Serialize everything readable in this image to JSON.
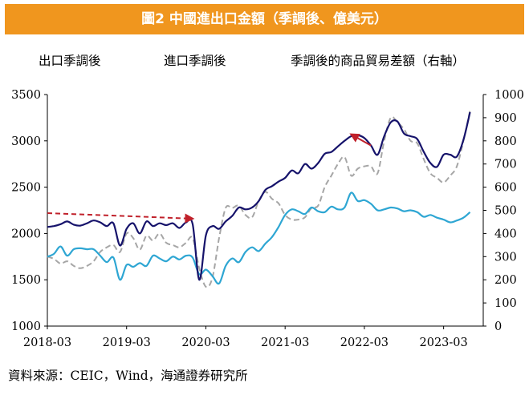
{
  "title": "圖2  中國進出口金額（季調後、億美元）",
  "legend": {
    "exports": "出口季調後",
    "imports": "進口季調後",
    "balance": "季調後的商品貿易差額（右軸）"
  },
  "source": "資料來源：CEIC，Wind，海通證券研究所",
  "colors": {
    "exports": "#16136b",
    "imports": "#2ea6d3",
    "balance": "#a6a6a6",
    "arrow": "#c0202a",
    "title_bg": "#f0961e"
  },
  "chart_data": {
    "type": "line",
    "x_ticks": [
      "2018-03",
      "2019-03",
      "2020-03",
      "2021-03",
      "2022-03",
      "2023-03"
    ],
    "left_axis": {
      "min": 1000,
      "max": 3500,
      "ticks": [
        "1000",
        "1500",
        "2000",
        "2500",
        "3000",
        "3500"
      ]
    },
    "right_axis": {
      "min": 0,
      "max": 1000,
      "ticks": [
        "0",
        "100",
        "200",
        "300",
        "400",
        "500",
        "600",
        "700",
        "800",
        "900",
        "1000"
      ]
    },
    "x_range": [
      "2018-03",
      "2023-09"
    ],
    "series": [
      {
        "name": "出口季調後",
        "axis": "left",
        "style": "solid",
        "points": [
          [
            "2018-03",
            2070
          ],
          [
            "2018-04",
            2080
          ],
          [
            "2018-05",
            2100
          ],
          [
            "2018-06",
            2130
          ],
          [
            "2018-07",
            2095
          ],
          [
            "2018-08",
            2085
          ],
          [
            "2018-09",
            2110
          ],
          [
            "2018-10",
            2140
          ],
          [
            "2018-11",
            2120
          ],
          [
            "2018-12",
            2080
          ],
          [
            "2019-01",
            2110
          ],
          [
            "2019-02",
            1870
          ],
          [
            "2019-03",
            2050
          ],
          [
            "2019-04",
            2110
          ],
          [
            "2019-05",
            2000
          ],
          [
            "2019-06",
            2130
          ],
          [
            "2019-07",
            2080
          ],
          [
            "2019-08",
            2110
          ],
          [
            "2019-09",
            2090
          ],
          [
            "2019-10",
            2110
          ],
          [
            "2019-11",
            2060
          ],
          [
            "2019-12",
            2120
          ],
          [
            "2020-01",
            2100
          ],
          [
            "2020-02",
            1500
          ],
          [
            "2020-03",
            1980
          ],
          [
            "2020-04",
            2080
          ],
          [
            "2020-05",
            2050
          ],
          [
            "2020-06",
            2130
          ],
          [
            "2020-07",
            2190
          ],
          [
            "2020-08",
            2280
          ],
          [
            "2020-09",
            2260
          ],
          [
            "2020-10",
            2280
          ],
          [
            "2020-11",
            2350
          ],
          [
            "2020-12",
            2470
          ],
          [
            "2021-01",
            2510
          ],
          [
            "2021-02",
            2560
          ],
          [
            "2021-03",
            2600
          ],
          [
            "2021-04",
            2680
          ],
          [
            "2021-05",
            2650
          ],
          [
            "2021-06",
            2750
          ],
          [
            "2021-07",
            2700
          ],
          [
            "2021-08",
            2760
          ],
          [
            "2021-09",
            2860
          ],
          [
            "2021-10",
            2880
          ],
          [
            "2021-11",
            2940
          ],
          [
            "2021-12",
            3000
          ],
          [
            "2022-01",
            3050
          ],
          [
            "2022-02",
            3060
          ],
          [
            "2022-03",
            3030
          ],
          [
            "2022-04",
            2950
          ],
          [
            "2022-05",
            2850
          ],
          [
            "2022-06",
            3050
          ],
          [
            "2022-07",
            3200
          ],
          [
            "2022-08",
            3210
          ],
          [
            "2022-09",
            3080
          ],
          [
            "2022-10",
            3050
          ],
          [
            "2022-11",
            3020
          ],
          [
            "2022-12",
            2880
          ],
          [
            "2023-01",
            2760
          ],
          [
            "2023-02",
            2720
          ],
          [
            "2023-03",
            2850
          ],
          [
            "2023-04",
            2850
          ],
          [
            "2023-05",
            2830
          ],
          [
            "2023-06",
            3010
          ],
          [
            "2023-07",
            3310
          ]
        ]
      },
      {
        "name": "進口季調後",
        "axis": "left",
        "style": "solid",
        "points": [
          [
            "2018-03",
            1750
          ],
          [
            "2018-04",
            1780
          ],
          [
            "2018-05",
            1860
          ],
          [
            "2018-06",
            1760
          ],
          [
            "2018-07",
            1830
          ],
          [
            "2018-08",
            1840
          ],
          [
            "2018-09",
            1830
          ],
          [
            "2018-10",
            1830
          ],
          [
            "2018-11",
            1760
          ],
          [
            "2018-12",
            1690
          ],
          [
            "2019-01",
            1740
          ],
          [
            "2019-02",
            1500
          ],
          [
            "2019-03",
            1660
          ],
          [
            "2019-04",
            1640
          ],
          [
            "2019-05",
            1680
          ],
          [
            "2019-06",
            1650
          ],
          [
            "2019-07",
            1760
          ],
          [
            "2019-08",
            1730
          ],
          [
            "2019-09",
            1700
          ],
          [
            "2019-10",
            1750
          ],
          [
            "2019-11",
            1720
          ],
          [
            "2019-12",
            1760
          ],
          [
            "2020-01",
            1740
          ],
          [
            "2020-02",
            1560
          ],
          [
            "2020-03",
            1610
          ],
          [
            "2020-04",
            1540
          ],
          [
            "2020-05",
            1460
          ],
          [
            "2020-06",
            1650
          ],
          [
            "2020-07",
            1730
          ],
          [
            "2020-08",
            1690
          ],
          [
            "2020-09",
            1800
          ],
          [
            "2020-10",
            1850
          ],
          [
            "2020-11",
            1810
          ],
          [
            "2020-12",
            1890
          ],
          [
            "2021-01",
            1960
          ],
          [
            "2021-02",
            2070
          ],
          [
            "2021-03",
            2200
          ],
          [
            "2021-04",
            2260
          ],
          [
            "2021-05",
            2240
          ],
          [
            "2021-06",
            2210
          ],
          [
            "2021-07",
            2280
          ],
          [
            "2021-08",
            2240
          ],
          [
            "2021-09",
            2230
          ],
          [
            "2021-10",
            2290
          ],
          [
            "2021-11",
            2260
          ],
          [
            "2021-12",
            2280
          ],
          [
            "2022-01",
            2440
          ],
          [
            "2022-02",
            2350
          ],
          [
            "2022-03",
            2360
          ],
          [
            "2022-04",
            2320
          ],
          [
            "2022-05",
            2250
          ],
          [
            "2022-06",
            2260
          ],
          [
            "2022-07",
            2280
          ],
          [
            "2022-08",
            2270
          ],
          [
            "2022-09",
            2240
          ],
          [
            "2022-10",
            2250
          ],
          [
            "2022-11",
            2230
          ],
          [
            "2022-12",
            2180
          ],
          [
            "2023-01",
            2200
          ],
          [
            "2023-02",
            2170
          ],
          [
            "2023-03",
            2150
          ],
          [
            "2023-04",
            2120
          ],
          [
            "2023-05",
            2140
          ],
          [
            "2023-06",
            2170
          ],
          [
            "2023-07",
            2230
          ]
        ]
      },
      {
        "name": "季調後的商品貿易差額（右軸）",
        "axis": "right",
        "style": "dashed",
        "points": [
          [
            "2018-03",
            300
          ],
          [
            "2018-04",
            290
          ],
          [
            "2018-05",
            270
          ],
          [
            "2018-06",
            280
          ],
          [
            "2018-07",
            260
          ],
          [
            "2018-08",
            250
          ],
          [
            "2018-09",
            260
          ],
          [
            "2018-10",
            280
          ],
          [
            "2018-11",
            320
          ],
          [
            "2018-12",
            340
          ],
          [
            "2019-01",
            350
          ],
          [
            "2019-02",
            320
          ],
          [
            "2019-03",
            400
          ],
          [
            "2019-04",
            380
          ],
          [
            "2019-05",
            330
          ],
          [
            "2019-06",
            390
          ],
          [
            "2019-07",
            370
          ],
          [
            "2019-08",
            400
          ],
          [
            "2019-09",
            360
          ],
          [
            "2019-10",
            350
          ],
          [
            "2019-11",
            340
          ],
          [
            "2019-12",
            360
          ],
          [
            "2020-01",
            380
          ],
          [
            "2020-02",
            250
          ],
          [
            "2020-03",
            170
          ],
          [
            "2020-04",
            210
          ],
          [
            "2020-05",
            380
          ],
          [
            "2020-06",
            510
          ],
          [
            "2020-07",
            510
          ],
          [
            "2020-08",
            520
          ],
          [
            "2020-09",
            480
          ],
          [
            "2020-10",
            470
          ],
          [
            "2020-11",
            540
          ],
          [
            "2020-12",
            580
          ],
          [
            "2021-01",
            550
          ],
          [
            "2021-02",
            530
          ],
          [
            "2021-03",
            480
          ],
          [
            "2021-04",
            460
          ],
          [
            "2021-05",
            460
          ],
          [
            "2021-06",
            470
          ],
          [
            "2021-07",
            510
          ],
          [
            "2021-08",
            520
          ],
          [
            "2021-09",
            600
          ],
          [
            "2021-10",
            650
          ],
          [
            "2021-11",
            700
          ],
          [
            "2021-12",
            730
          ],
          [
            "2022-01",
            650
          ],
          [
            "2022-02",
            680
          ],
          [
            "2022-03",
            690
          ],
          [
            "2022-04",
            690
          ],
          [
            "2022-05",
            660
          ],
          [
            "2022-06",
            800
          ],
          [
            "2022-07",
            900
          ],
          [
            "2022-08",
            880
          ],
          [
            "2022-09",
            850
          ],
          [
            "2022-10",
            800
          ],
          [
            "2022-11",
            790
          ],
          [
            "2022-12",
            720
          ],
          [
            "2023-01",
            660
          ],
          [
            "2023-02",
            640
          ],
          [
            "2023-03",
            620
          ],
          [
            "2023-04",
            650
          ],
          [
            "2023-05",
            690
          ],
          [
            "2023-06",
            800
          ],
          [
            "2023-07",
            930
          ]
        ]
      }
    ],
    "annotations": [
      {
        "type": "arrow",
        "style": "dashed",
        "from": [
          "2018-03",
          2220
        ],
        "to": [
          "2020-01",
          2160
        ],
        "axis": "left"
      },
      {
        "type": "arrow",
        "style": "solid",
        "from": [
          "2022-04",
          2950
        ],
        "to": [
          "2022-01",
          3070
        ],
        "axis": "left"
      }
    ]
  }
}
